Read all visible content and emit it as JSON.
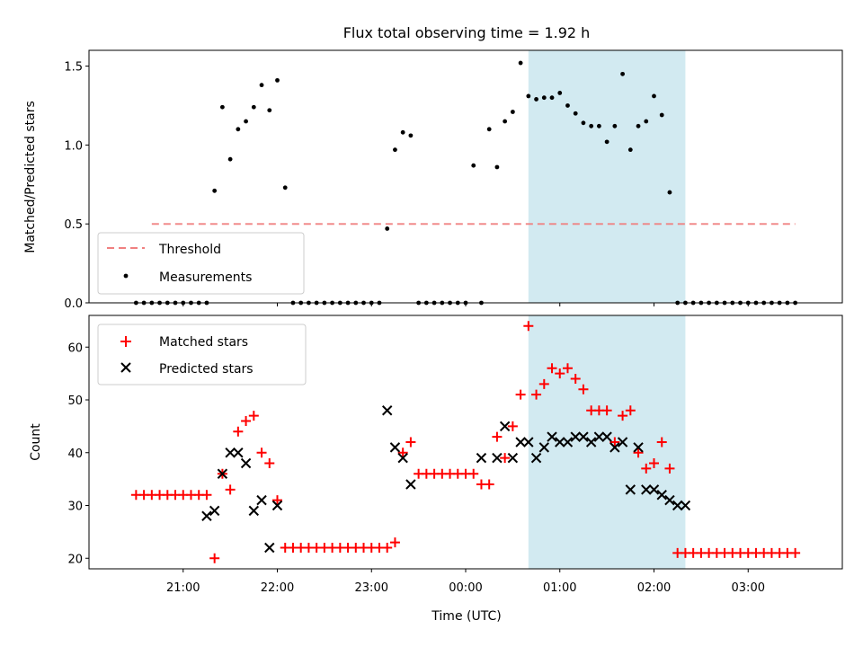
{
  "chart_data": [
    {
      "type": "scatter",
      "title": "Flux total observing time = 1.92 h",
      "xlabel": "",
      "ylabel": "Matched/Predicted stars",
      "ylim": [
        0,
        1.6
      ],
      "yticks": [
        "0.0",
        "0.5",
        "1.0",
        "1.5"
      ],
      "xlim_hours": [
        20.0,
        28.0
      ],
      "highlight_span": [
        "00:40",
        "02:20"
      ],
      "highlight_color": "#add8e6",
      "grid": false,
      "legend_position": "lower-left",
      "series": [
        {
          "name": "Threshold",
          "kind": "line",
          "color": "#f08080",
          "x": [
            "20:40",
            "03:30"
          ],
          "y": [
            0.5,
            0.5
          ]
        },
        {
          "name": "Measurements",
          "kind": "dots",
          "color": "#000000",
          "x": [
            "20:30",
            "20:35",
            "20:40",
            "20:45",
            "20:50",
            "20:55",
            "21:00",
            "21:05",
            "21:10",
            "21:15",
            "21:20",
            "21:25",
            "21:30",
            "21:35",
            "21:40",
            "21:45",
            "21:50",
            "21:55",
            "22:00",
            "22:05",
            "22:10",
            "22:15",
            "22:20",
            "22:25",
            "22:30",
            "22:35",
            "22:40",
            "22:45",
            "22:50",
            "22:55",
            "23:00",
            "23:05",
            "23:10",
            "23:15",
            "23:20",
            "23:25",
            "23:30",
            "23:35",
            "23:40",
            "23:45",
            "23:50",
            "23:55",
            "00:00",
            "00:05",
            "00:10",
            "00:15",
            "00:20",
            "00:25",
            "00:30",
            "00:35",
            "00:40",
            "00:45",
            "00:50",
            "00:55",
            "01:00",
            "01:05",
            "01:10",
            "01:15",
            "01:20",
            "01:25",
            "01:30",
            "01:35",
            "01:40",
            "01:45",
            "01:50",
            "01:55",
            "02:00",
            "02:05",
            "02:10",
            "02:15",
            "02:20",
            "02:25",
            "02:30",
            "02:35",
            "02:40",
            "02:45",
            "02:50",
            "02:55",
            "03:00",
            "03:05",
            "03:10",
            "03:15",
            "03:20",
            "03:25",
            "03:30"
          ],
          "y": [
            0,
            0,
            0,
            0,
            0,
            0,
            0,
            0,
            0,
            0,
            0.71,
            1.24,
            0.91,
            1.1,
            1.15,
            1.24,
            1.38,
            1.22,
            1.41,
            0.73,
            0,
            0,
            0,
            0,
            0,
            0,
            0,
            0,
            0,
            0,
            0,
            0,
            0.47,
            0.97,
            1.08,
            1.06,
            0,
            0,
            0,
            0,
            0,
            0,
            0,
            0.87,
            0,
            1.1,
            0.86,
            1.15,
            1.21,
            1.52,
            1.31,
            1.29,
            1.3,
            1.3,
            1.33,
            1.25,
            1.2,
            1.14,
            1.12,
            1.12,
            1.02,
            1.12,
            1.45,
            0.97,
            1.12,
            1.15,
            1.31,
            1.19,
            0.7,
            0,
            0,
            0,
            0,
            0,
            0,
            0,
            0,
            0,
            0,
            0,
            0,
            0,
            0,
            0,
            0
          ]
        }
      ]
    },
    {
      "type": "scatter",
      "title": "",
      "xlabel": "Time (UTC)",
      "ylabel": "Count",
      "ylim": [
        18,
        66
      ],
      "yticks": [
        "20",
        "30",
        "40",
        "50",
        "60"
      ],
      "xticks": [
        "21:00",
        "22:00",
        "23:00",
        "00:00",
        "01:00",
        "02:00",
        "03:00"
      ],
      "xlim_hours": [
        20.0,
        28.0
      ],
      "highlight_span": [
        "00:40",
        "02:20"
      ],
      "highlight_color": "#add8e6",
      "grid": false,
      "legend_position": "upper-left",
      "series": [
        {
          "name": "Matched stars",
          "kind": "plus",
          "color": "#ff0000",
          "x": [
            "20:30",
            "20:35",
            "20:40",
            "20:45",
            "20:50",
            "20:55",
            "21:00",
            "21:05",
            "21:10",
            "21:15",
            "21:20",
            "21:25",
            "21:30",
            "21:35",
            "21:40",
            "21:45",
            "21:50",
            "21:55",
            "22:00",
            "22:05",
            "22:10",
            "22:15",
            "22:20",
            "22:25",
            "22:30",
            "22:35",
            "22:40",
            "22:45",
            "22:50",
            "22:55",
            "23:00",
            "23:05",
            "23:10",
            "23:15",
            "23:20",
            "23:25",
            "23:30",
            "23:35",
            "23:40",
            "23:45",
            "23:50",
            "23:55",
            "00:00",
            "00:05",
            "00:10",
            "00:15",
            "00:20",
            "00:25",
            "00:30",
            "00:35",
            "00:40",
            "00:45",
            "00:50",
            "00:55",
            "01:00",
            "01:05",
            "01:10",
            "01:15",
            "01:20",
            "01:25",
            "01:30",
            "01:35",
            "01:40",
            "01:45",
            "01:50",
            "01:55",
            "02:00",
            "02:05",
            "02:10",
            "02:15",
            "02:20",
            "02:25",
            "02:30",
            "02:35",
            "02:40",
            "02:45",
            "02:50",
            "02:55",
            "03:00",
            "03:05",
            "03:10",
            "03:15",
            "03:20",
            "03:25",
            "03:30"
          ],
          "y": [
            32,
            32,
            32,
            32,
            32,
            32,
            32,
            32,
            32,
            32,
            20,
            36,
            33,
            44,
            46,
            47,
            40,
            38,
            31,
            22,
            22,
            22,
            22,
            22,
            22,
            22,
            22,
            22,
            22,
            22,
            22,
            22,
            22,
            23,
            40,
            42,
            36,
            36,
            36,
            36,
            36,
            36,
            36,
            36,
            34,
            34,
            43,
            39,
            45,
            51,
            64,
            51,
            53,
            56,
            55,
            56,
            54,
            52,
            48,
            48,
            48,
            42,
            47,
            48,
            40,
            37,
            38,
            42,
            37,
            21,
            21,
            21,
            21,
            21,
            21,
            21,
            21,
            21,
            21,
            21,
            21,
            21,
            21,
            21,
            21
          ]
        },
        {
          "name": "Predicted stars",
          "kind": "x",
          "color": "#000000",
          "x": [
            "21:15",
            "21:20",
            "21:25",
            "21:30",
            "21:35",
            "21:40",
            "21:45",
            "21:50",
            "21:55",
            "22:00",
            "23:10",
            "23:15",
            "23:20",
            "23:25",
            "00:10",
            "00:20",
            "00:25",
            "00:30",
            "00:35",
            "00:40",
            "00:45",
            "00:50",
            "00:55",
            "01:00",
            "01:05",
            "01:10",
            "01:15",
            "01:20",
            "01:25",
            "01:30",
            "01:35",
            "01:40",
            "01:45",
            "01:50",
            "01:55",
            "02:00",
            "02:05",
            "02:10",
            "02:15",
            "02:20"
          ],
          "y": [
            28,
            29,
            36,
            40,
            40,
            38,
            29,
            31,
            22,
            30,
            48,
            41,
            39,
            34,
            39,
            39,
            45,
            39,
            42,
            42,
            39,
            41,
            43,
            42,
            42,
            43,
            43,
            42,
            43,
            43,
            41,
            42,
            33,
            41,
            33,
            33,
            32,
            31,
            30,
            30
          ]
        }
      ]
    }
  ]
}
